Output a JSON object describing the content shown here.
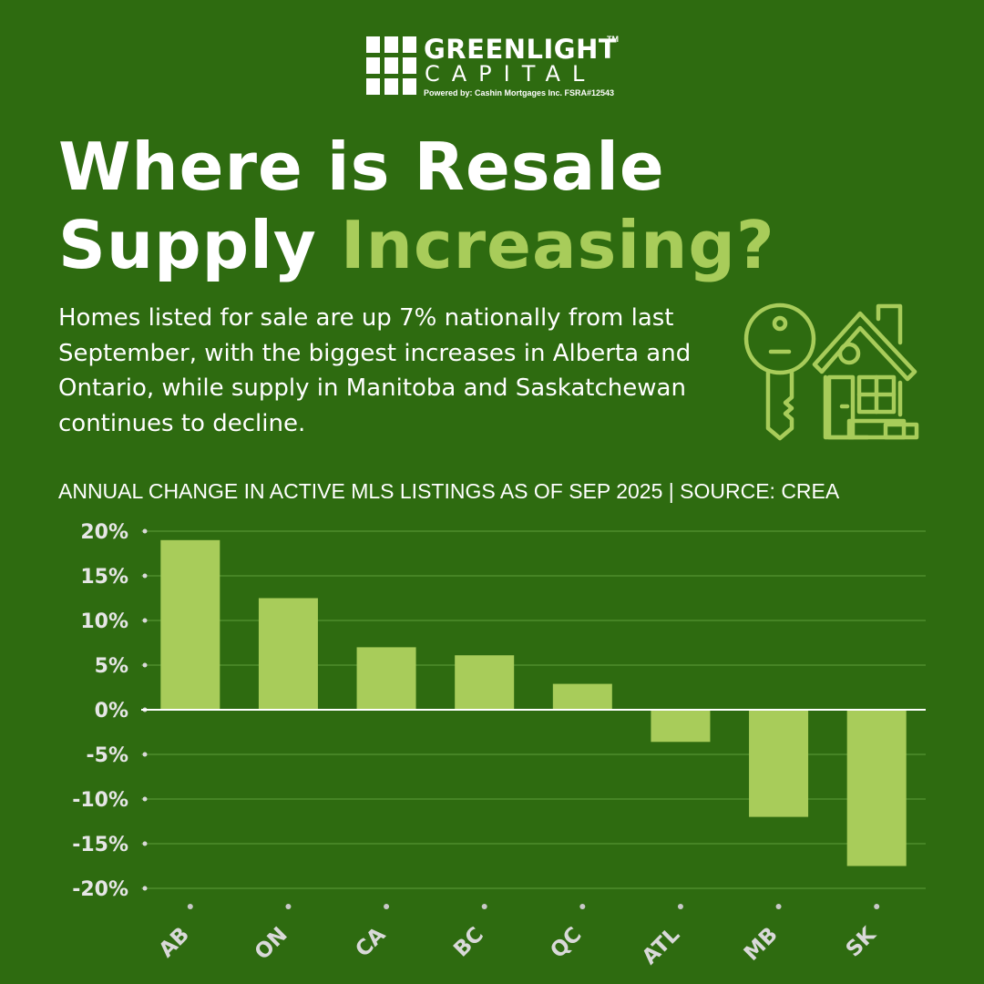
{
  "brand": {
    "name_line1": "GREENLIGHT",
    "trademark": "TM",
    "name_line2": "CAPITAL",
    "powered_by": "Powered by:  Cashin Mortgages Inc.  FSRA#12543"
  },
  "headline": {
    "line1": "Where is Resale",
    "line2_white": "Supply",
    "line2_accent": "Increasing?"
  },
  "description": "Homes listed for sale are up 7% nationally from last September, with the biggest increases in Alberta and Ontario, while supply in Manitoba and Saskatchewan continues to decline.",
  "icons": {
    "illustration": "house-key-icon"
  },
  "colors": {
    "background": "#2e6b10",
    "accent": "#a8cc5a",
    "bar": "#a8cc5a",
    "text": "#ffffff"
  },
  "chart_data": {
    "type": "bar",
    "title": "ANNUAL CHANGE IN ACTIVE MLS LISTINGS AS OF SEP 2025 | SOURCE: CREA",
    "xlabel": "",
    "ylabel": "",
    "categories": [
      "AB",
      "ON",
      "CA",
      "BC",
      "QC",
      "ATL",
      "MB",
      "SK"
    ],
    "values": [
      19.0,
      12.5,
      7.0,
      6.1,
      2.9,
      -3.6,
      -12.0,
      -17.5
    ],
    "ylim": [
      -20,
      20
    ],
    "yticks": [
      20,
      15,
      10,
      5,
      0,
      -5,
      -10,
      -15,
      -20
    ],
    "ytick_labels": [
      "20%",
      "15%",
      "10%",
      "5%",
      "0%",
      "-5%",
      "-10%",
      "-15%",
      "-20%"
    ],
    "grid": true,
    "legend": "none"
  }
}
